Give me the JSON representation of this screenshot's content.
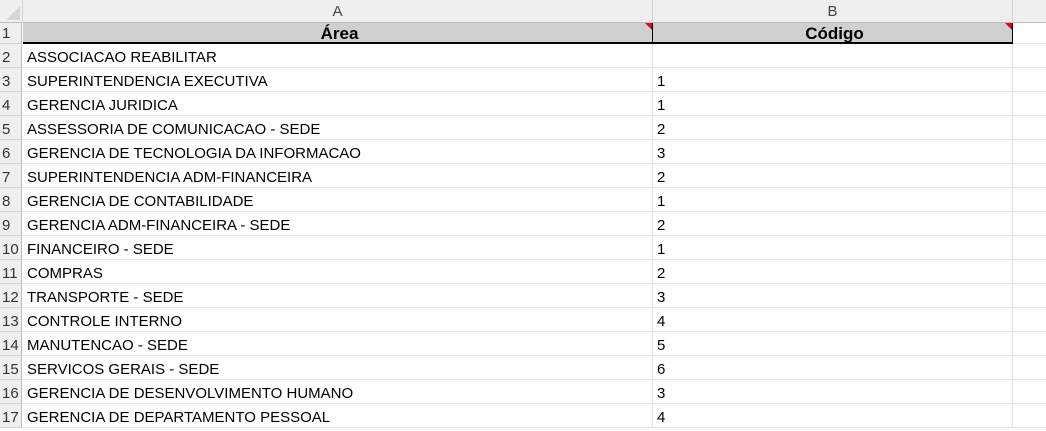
{
  "columns": [
    "A",
    "B"
  ],
  "header": {
    "area": "Área",
    "codigo": "Código"
  },
  "rows": [
    {
      "n": "1"
    },
    {
      "n": "2",
      "area": "ASSOCIACAO REABILITAR",
      "codigo": ""
    },
    {
      "n": "3",
      "area": "SUPERINTENDENCIA EXECUTIVA",
      "codigo": "1"
    },
    {
      "n": "4",
      "area": "GERENCIA JURIDICA",
      "codigo": "1"
    },
    {
      "n": "5",
      "area": "ASSESSORIA DE COMUNICACAO - SEDE",
      "codigo": "2"
    },
    {
      "n": "6",
      "area": "GERENCIA DE TECNOLOGIA DA INFORMACAO",
      "codigo": "3"
    },
    {
      "n": "7",
      "area": "SUPERINTENDENCIA ADM-FINANCEIRA",
      "codigo": "2"
    },
    {
      "n": "8",
      "area": "GERENCIA DE CONTABILIDADE",
      "codigo": "1"
    },
    {
      "n": "9",
      "area": "GERENCIA ADM-FINANCEIRA - SEDE",
      "codigo": "2"
    },
    {
      "n": "10",
      "area": "FINANCEIRO - SEDE",
      "codigo": "1"
    },
    {
      "n": "11",
      "area": "COMPRAS",
      "codigo": "2"
    },
    {
      "n": "12",
      "area": "TRANSPORTE - SEDE",
      "codigo": "3"
    },
    {
      "n": "13",
      "area": "CONTROLE INTERNO",
      "codigo": "4"
    },
    {
      "n": "14",
      "area": "MANUTENCAO - SEDE",
      "codigo": "5"
    },
    {
      "n": "15",
      "area": "SERVICOS GERAIS - SEDE",
      "codigo": "6"
    },
    {
      "n": "16",
      "area": "GERENCIA DE DESENVOLVIMENTO HUMANO",
      "codigo": "3"
    },
    {
      "n": "17",
      "area": "GERENCIA DE DEPARTAMENTO PESSOAL",
      "codigo": "4"
    }
  ],
  "colors": {
    "header_fill": "#d0d0d0",
    "comment_marker": "#e00000"
  }
}
